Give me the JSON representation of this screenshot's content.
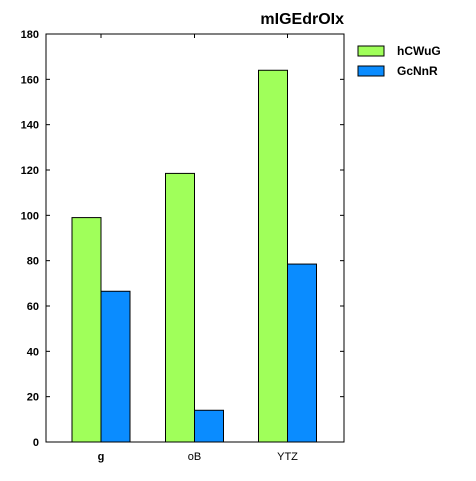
{
  "chart_data": {
    "type": "bar",
    "title": "mIGEdrOIx",
    "xlabel": "",
    "ylabel": "",
    "categories": [
      "g",
      "oB",
      "YTZ"
    ],
    "series": [
      {
        "name": "hCWuG",
        "values": [
          99,
          118.5,
          164
        ],
        "color": "#a0ff5a"
      },
      {
        "name": "GcNnR",
        "values": [
          66.5,
          14,
          78.5
        ],
        "color": "#0a8cff"
      }
    ],
    "ylim": [
      0,
      180
    ],
    "yticks": [
      0,
      20,
      40,
      60,
      80,
      100,
      120,
      140,
      160,
      180
    ],
    "grid": false,
    "legend_position": "outside-right-top"
  }
}
